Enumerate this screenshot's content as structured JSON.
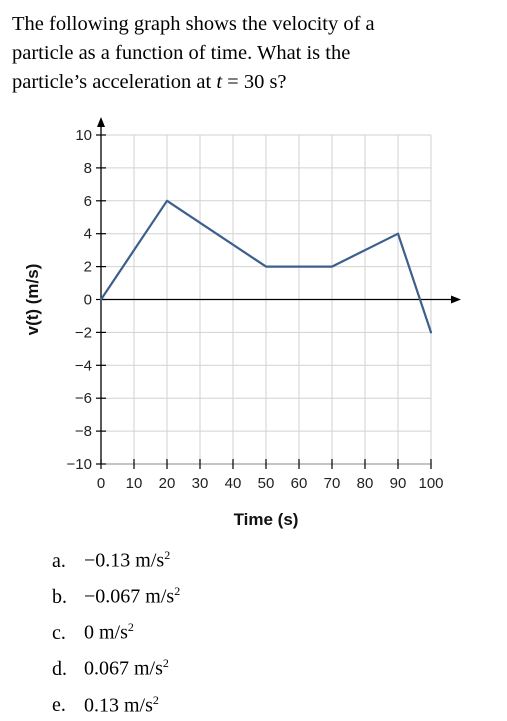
{
  "question": {
    "line1": "The following graph shows the velocity of a",
    "line2": "particle as a function of time.  What is the",
    "line3_prefix": "particle’s acceleration at ",
    "line3_var": "t",
    "line3_suffix": " = 30 s?"
  },
  "options": [
    {
      "letter": "a.",
      "value": "−0.13 m/s",
      "power": "2"
    },
    {
      "letter": "b.",
      "value": "−0.067 m/s",
      "power": "2"
    },
    {
      "letter": "c.",
      "value": "0 m/s",
      "power": "2"
    },
    {
      "letter": "d.",
      "value": "0.067 m/s",
      "power": "2"
    },
    {
      "letter": "e.",
      "value": "0.13 m/s",
      "power": "2"
    }
  ],
  "chart_data": {
    "type": "line",
    "xlabel": "Time (s)",
    "ylabel": "v(t) (m/s)",
    "xlim": [
      0,
      100
    ],
    "ylim": [
      -10,
      10
    ],
    "x_ticks": [
      0,
      10,
      20,
      30,
      40,
      50,
      60,
      70,
      80,
      90,
      100
    ],
    "y_ticks": [
      10,
      8,
      6,
      4,
      2,
      0,
      -2,
      -4,
      -6,
      -8,
      -10
    ],
    "x_tick_labels": [
      "0",
      "10",
      "20",
      "30",
      "40",
      "50",
      "60",
      "70",
      "80",
      "90",
      "100"
    ],
    "y_tick_labels": [
      "10",
      "8",
      "6",
      "4",
      "2",
      "0",
      "−2",
      "−4",
      "−6",
      "−8",
      "−10"
    ],
    "grid": true,
    "series": [
      {
        "x": [
          0,
          20,
          50,
          70,
          90,
          100
        ],
        "y": [
          0,
          6,
          2,
          2,
          4,
          -2
        ]
      }
    ],
    "colors": {
      "line": "#3c5f8c",
      "grid": "#d2d2d2",
      "axis": "#000000"
    }
  }
}
